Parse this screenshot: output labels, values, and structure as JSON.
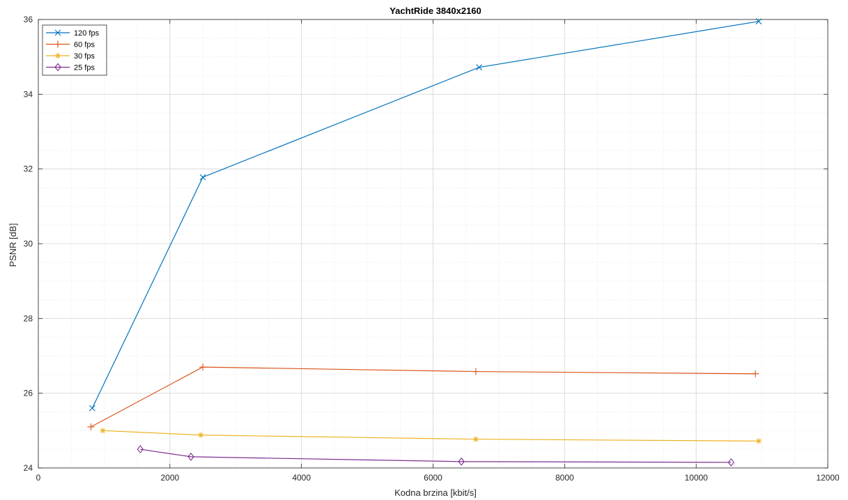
{
  "chart_data": {
    "type": "line",
    "title": "YachtRide 3840x2160",
    "xlabel": "Kodna brzina [kbit/s]",
    "ylabel": "PSNR [dB]",
    "xlim": [
      0,
      12000
    ],
    "ylim": [
      24,
      36
    ],
    "xticks": [
      0,
      2000,
      4000,
      6000,
      8000,
      10000,
      12000
    ],
    "yticks": [
      24,
      26,
      28,
      30,
      32,
      34,
      36
    ],
    "grid": true,
    "minor_grid": true,
    "legend_position": "top-left",
    "series": [
      {
        "name": "120 fps",
        "color": "#0072BD",
        "marker": "x",
        "x": [
          820,
          2500,
          6700,
          10950
        ],
        "y": [
          25.6,
          31.78,
          34.72,
          35.95
        ]
      },
      {
        "name": "60 fps",
        "color": "#D95319",
        "marker": "+",
        "x": [
          800,
          2500,
          6650,
          10900
        ],
        "y": [
          25.1,
          26.7,
          26.58,
          26.52
        ]
      },
      {
        "name": "30 fps",
        "color": "#EDB120",
        "marker": "*",
        "x": [
          980,
          2470,
          6650,
          10950
        ],
        "y": [
          25.0,
          24.88,
          24.77,
          24.72
        ]
      },
      {
        "name": "25 fps",
        "color": "#7E2F8E",
        "marker": "diamond",
        "x": [
          1550,
          2320,
          6430,
          10530
        ],
        "y": [
          24.5,
          24.3,
          24.17,
          24.15
        ]
      }
    ]
  }
}
